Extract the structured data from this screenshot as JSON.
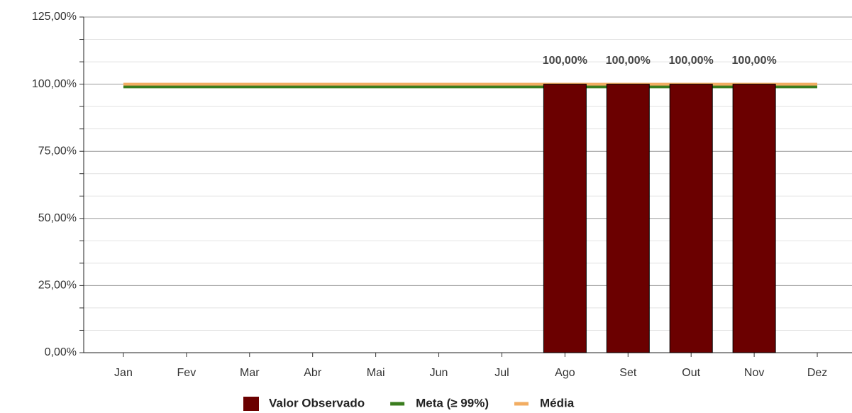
{
  "chart_data": {
    "type": "bar",
    "categories": [
      "Jan",
      "Fev",
      "Mar",
      "Abr",
      "Mai",
      "Jun",
      "Jul",
      "Ago",
      "Set",
      "Out",
      "Nov",
      "Dez"
    ],
    "series": [
      {
        "name": "Valor Observado",
        "type": "bar",
        "color": "#6b0000",
        "values": [
          null,
          null,
          null,
          null,
          null,
          null,
          null,
          100,
          100,
          100,
          100,
          null
        ],
        "value_labels": [
          null,
          null,
          null,
          null,
          null,
          null,
          null,
          "100,00%",
          "100,00%",
          "100,00%",
          "100,00%",
          null
        ]
      },
      {
        "name": "Meta (≥ 99%)",
        "type": "line",
        "color": "#3a7d1e",
        "values": [
          99,
          99,
          99,
          99,
          99,
          99,
          99,
          99,
          99,
          99,
          99,
          99
        ]
      },
      {
        "name": "Média",
        "type": "line",
        "color": "#f2ad62",
        "values": [
          100,
          100,
          100,
          100,
          100,
          100,
          100,
          100,
          100,
          100,
          100,
          100
        ]
      }
    ],
    "ylim": [
      0,
      125
    ],
    "yticks": [
      {
        "value": 0,
        "label": "0,00%"
      },
      {
        "value": 25,
        "label": "25,00%"
      },
      {
        "value": 50,
        "label": "50,00%"
      },
      {
        "value": 75,
        "label": "75,00%"
      },
      {
        "value": 100,
        "label": "100,00%"
      },
      {
        "value": 125,
        "label": "125,00%"
      }
    ],
    "minor_yticks": [
      8.33,
      16.67,
      33.33,
      41.67,
      58.33,
      66.67,
      83.33,
      91.67,
      108.33,
      116.67
    ],
    "grid": true,
    "legend": "bottom"
  }
}
